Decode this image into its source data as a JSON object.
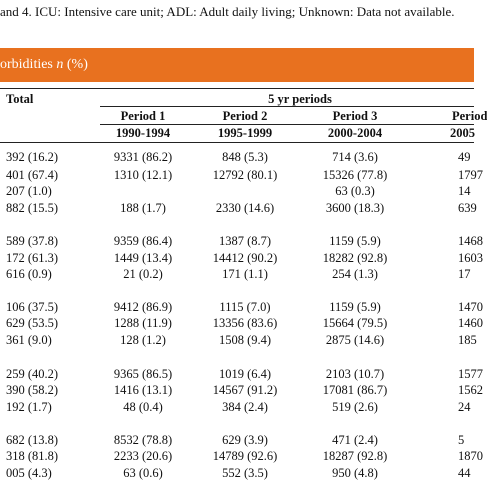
{
  "caption": "and 4. ICU: Intensive care unit; ADL: Adult daily living; Unknown: Data not available.",
  "section_title": "orbidities",
  "section_title_n": "n",
  "section_title_pct": "(%)",
  "header": {
    "total": "Total",
    "group": "5 yr periods",
    "periods": [
      "Period 1",
      "Period 2",
      "Period 3",
      "Period"
    ],
    "years": [
      "1990-1994",
      "1995-1999",
      "2000-2004",
      "2005"
    ]
  },
  "rows": [
    {
      "total": "392 (16.2)",
      "p1": "9331 (86.2)",
      "p2": "848 (5.3)",
      "p3": "714 (3.6)",
      "p4": "49"
    },
    {
      "total": "401 (67.4)",
      "p1": "1310 (12.1)",
      "p2": "12792 (80.1)",
      "p3": "15326 (77.8)",
      "p4": "1797"
    },
    {
      "total": "207 (1.0)",
      "p1": "",
      "p2": "",
      "p3": "63 (0.3)",
      "p4": "14"
    },
    {
      "total": "882 (15.5)",
      "p1": "188 (1.7)",
      "p2": "2330 (14.6)",
      "p3": "3600 (18.3)",
      "p4": "639"
    },
    {
      "total": "589 (37.8)",
      "p1": "9359 (86.4)",
      "p2": "1387 (8.7)",
      "p3": "1159 (5.9)",
      "p4": "1468"
    },
    {
      "total": "172 (61.3)",
      "p1": "1449 (13.4)",
      "p2": "14412 (90.2)",
      "p3": "18282 (92.8)",
      "p4": "1603"
    },
    {
      "total": "616 (0.9)",
      "p1": "21 (0.2)",
      "p2": "171 (1.1)",
      "p3": "254 (1.3)",
      "p4": "17"
    },
    {
      "total": "106 (37.5)",
      "p1": "9412 (86.9)",
      "p2": "1115 (7.0)",
      "p3": "1159 (5.9)",
      "p4": "1470"
    },
    {
      "total": "629 (53.5)",
      "p1": "1288 (11.9)",
      "p2": "13356 (83.6)",
      "p3": "15664 (79.5)",
      "p4": "1460"
    },
    {
      "total": "361 (9.0)",
      "p1": "128 (1.2)",
      "p2": "1508 (9.4)",
      "p3": "2875 (14.6)",
      "p4": "185"
    },
    {
      "total": "259 (40.2)",
      "p1": "9365 (86.5)",
      "p2": "1019 (6.4)",
      "p3": "2103 (10.7)",
      "p4": "1577"
    },
    {
      "total": "390 (58.2)",
      "p1": "1416 (13.1)",
      "p2": "14567 (91.2)",
      "p3": "17081 (86.7)",
      "p4": "1562"
    },
    {
      "total": "192 (1.7)",
      "p1": "48 (0.4)",
      "p2": "384 (2.4)",
      "p3": "519 (2.6)",
      "p4": "24"
    },
    {
      "total": "682 (13.8)",
      "p1": "8532 (78.8)",
      "p2": "629 (3.9)",
      "p3": "471 (2.4)",
      "p4": "5"
    },
    {
      "total": "318 (81.8)",
      "p1": "2233 (20.6)",
      "p2": "14789 (92.6)",
      "p3": "18287 (92.8)",
      "p4": "1870"
    },
    {
      "total": "005 (4.3)",
      "p1": "63 (0.6)",
      "p2": "552 (3.5)",
      "p3": "950 (4.8)",
      "p4": "44"
    }
  ]
}
